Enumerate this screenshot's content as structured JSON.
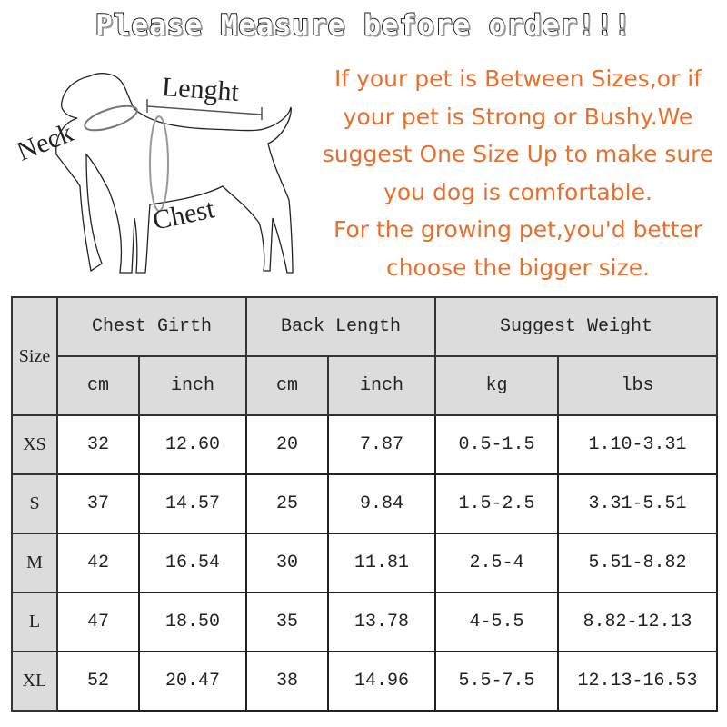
{
  "title": "Please Measure before order!!!",
  "diagram": {
    "length_label": "Lenght",
    "neck_label": "Neck",
    "chest_label": "Chest"
  },
  "notice": [
    "If your pet is Between Sizes,or if",
    "your pet is Strong or Bushy.We",
    "suggest One Size Up to make sure",
    "you dog is comfortable.",
    "For the growing pet,you'd better",
    "choose the bigger size."
  ],
  "colors": {
    "notice": "#e8702e",
    "header_bg": "#dcdcdc"
  },
  "table": {
    "size_header": "Size",
    "groups": [
      "Chest Girth",
      "Back Length",
      "Suggest Weight"
    ],
    "units": [
      "cm",
      "inch",
      "cm",
      "inch",
      "kg",
      "lbs"
    ],
    "rows": [
      {
        "size": "XS",
        "values": [
          "32",
          "12.60",
          "20",
          "7.87",
          "0.5-1.5",
          "1.10-3.31"
        ]
      },
      {
        "size": "S",
        "values": [
          "37",
          "14.57",
          "25",
          "9.84",
          "1.5-2.5",
          "3.31-5.51"
        ]
      },
      {
        "size": "M",
        "values": [
          "42",
          "16.54",
          "30",
          "11.81",
          "2.5-4",
          "5.51-8.82"
        ]
      },
      {
        "size": "L",
        "values": [
          "47",
          "18.50",
          "35",
          "13.78",
          "4-5.5",
          "8.82-12.13"
        ]
      },
      {
        "size": "XL",
        "values": [
          "52",
          "20.47",
          "38",
          "14.96",
          "5.5-7.5",
          "12.13-16.53"
        ]
      }
    ]
  }
}
